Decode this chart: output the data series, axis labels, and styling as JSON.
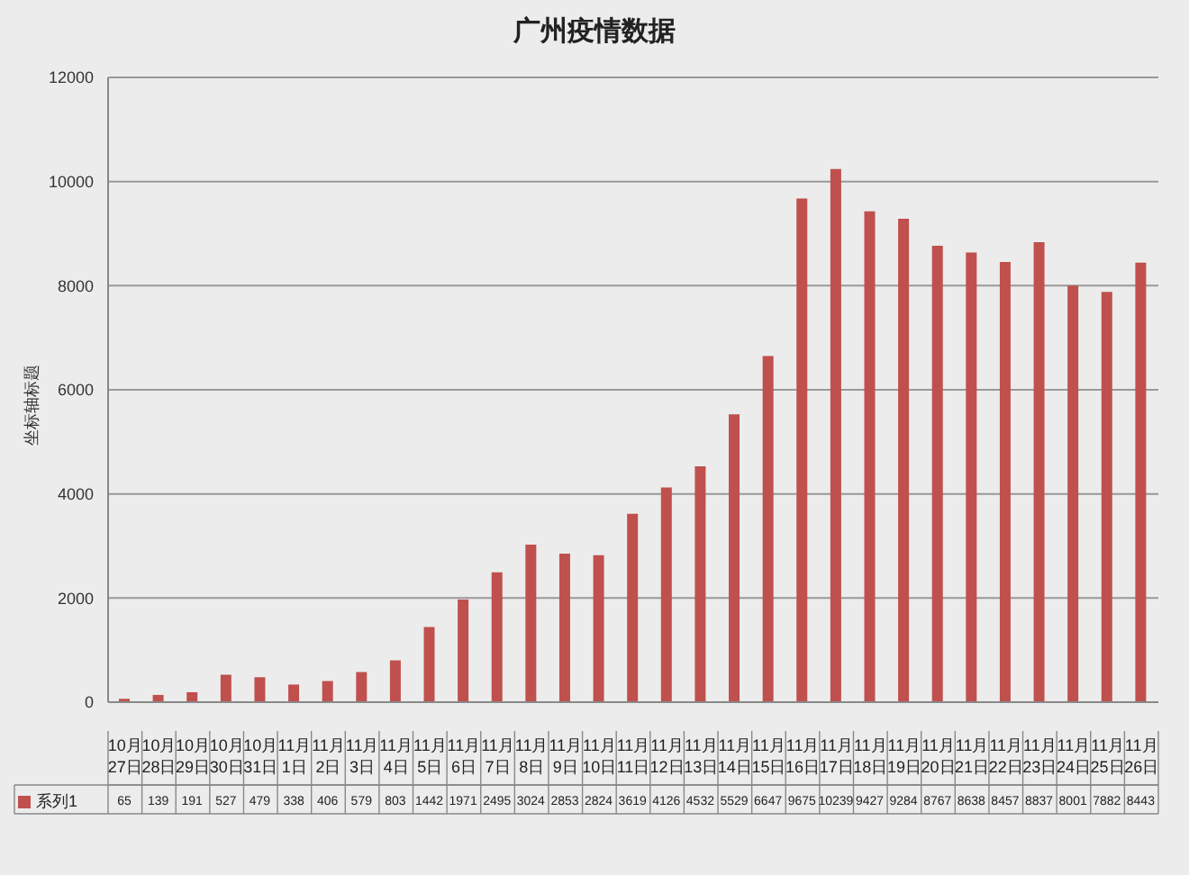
{
  "chart_data": {
    "type": "bar",
    "title": "广州疫情数据",
    "ylabel": "坐标轴标题",
    "categories": [
      "10月27日",
      "10月28日",
      "10月29日",
      "10月30日",
      "10月31日",
      "11月1日",
      "11月2日",
      "11月3日",
      "11月4日",
      "11月5日",
      "11月6日",
      "11月7日",
      "11月8日",
      "11月9日",
      "11月10日",
      "11月11日",
      "11月12日",
      "11月13日",
      "11月14日",
      "11月15日",
      "11月16日",
      "11月17日",
      "11月18日",
      "11月19日",
      "11月20日",
      "11月21日",
      "11月22日",
      "11月23日",
      "11月24日",
      "11月25日",
      "11月26日"
    ],
    "series": [
      {
        "name": "系列1",
        "color": "#c0504d",
        "values": [
          65,
          139,
          191,
          527,
          479,
          338,
          406,
          579,
          803,
          1442,
          1971,
          2495,
          3024,
          2853,
          2824,
          3619,
          4126,
          4532,
          5529,
          6647,
          9675,
          10239,
          9427,
          9284,
          8767,
          8638,
          8457,
          8837,
          8001,
          7882,
          8443
        ]
      }
    ],
    "ylim": [
      0,
      12000
    ],
    "yticks": [
      0,
      2000,
      4000,
      6000,
      8000,
      10000,
      12000
    ],
    "grid": "y",
    "legend": "bottom left",
    "data_labels": true
  }
}
